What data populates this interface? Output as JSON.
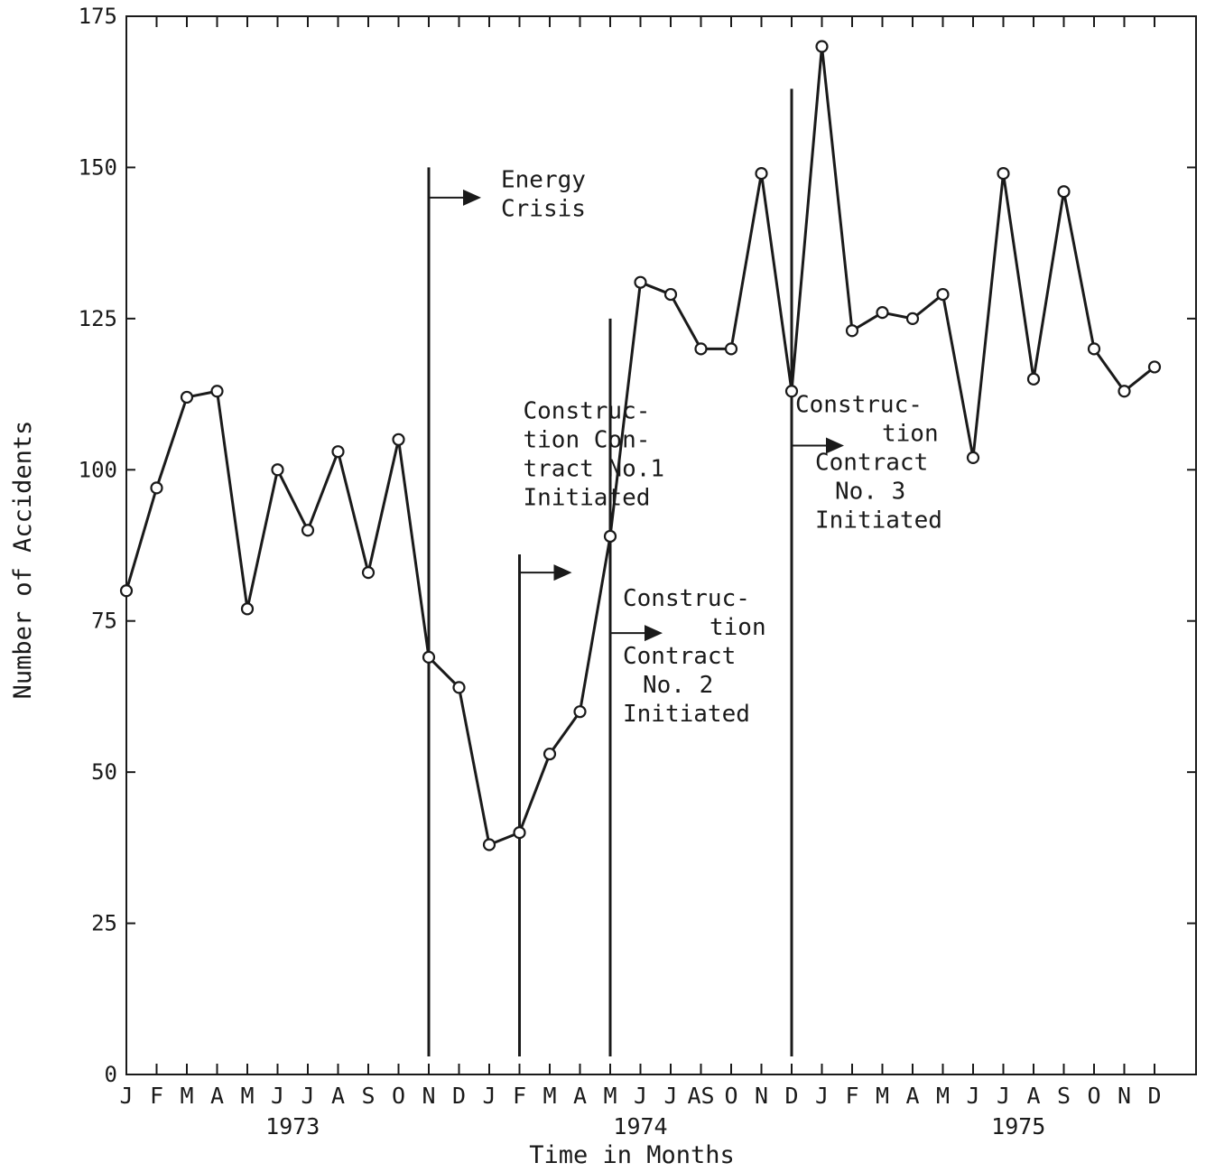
{
  "chart_data": {
    "type": "line",
    "title": "",
    "xlabel": "Time in Months",
    "ylabel": "Number of Accidents",
    "ylim": [
      0,
      175
    ],
    "yticks": [
      0,
      25,
      50,
      75,
      100,
      125,
      150,
      175
    ],
    "grid": false,
    "month_labels": [
      "J",
      "F",
      "M",
      "A",
      "M",
      "J",
      "J",
      "A",
      "S",
      "O",
      "N",
      "D",
      "J",
      "F",
      "M",
      "A",
      "M",
      "J",
      "J",
      "AS",
      "O",
      "N",
      "D",
      "J",
      "F",
      "M",
      "A",
      "M",
      "J",
      "J",
      "A",
      "S",
      "O",
      "N",
      "D"
    ],
    "year_labels": [
      {
        "text": "1973",
        "month_index": 5.5
      },
      {
        "text": "1974",
        "month_index": 17
      },
      {
        "text": "1975",
        "month_index": 29.5
      }
    ],
    "x": [
      "1973-01",
      "1973-02",
      "1973-03",
      "1973-04",
      "1973-05",
      "1973-06",
      "1973-07",
      "1973-08",
      "1973-09",
      "1973-10",
      "1973-11",
      "1973-12",
      "1974-01",
      "1974-02",
      "1974-03",
      "1974-04",
      "1974-05",
      "1974-06",
      "1974-07",
      "1974-08",
      "1974-09",
      "1974-10",
      "1974-11",
      "1974-12",
      "1975-01",
      "1975-02",
      "1975-03",
      "1975-04",
      "1975-05",
      "1975-06",
      "1975-07",
      "1975-08",
      "1975-09",
      "1975-10",
      "1975-11"
    ],
    "series": [
      {
        "values": [
          80,
          97,
          112,
          113,
          77,
          100,
          90,
          103,
          83,
          105,
          69,
          64,
          38,
          40,
          53,
          60,
          89,
          131,
          129,
          120,
          120,
          149,
          113,
          170,
          123,
          126,
          125,
          129,
          102,
          149,
          115,
          146,
          120,
          113,
          117
        ]
      }
    ],
    "events": [
      {
        "month_index": 10,
        "line_top": 150,
        "label_lines": [
          "Energy",
          "Crisis"
        ]
      },
      {
        "month_index": 13,
        "line_top": 86,
        "label_lines": [
          "Construc-",
          "tion Con-",
          "tract No.1",
          "Initiated"
        ]
      },
      {
        "month_index": 16,
        "line_top": 125,
        "label_lines": [
          "Construc-",
          "tion",
          "Contract",
          "No. 2",
          "Initiated"
        ]
      },
      {
        "month_index": 22,
        "line_top": 163,
        "label_lines": [
          "Construc-",
          "tion",
          "Contract",
          "No. 3",
          "Initiated"
        ]
      }
    ]
  }
}
